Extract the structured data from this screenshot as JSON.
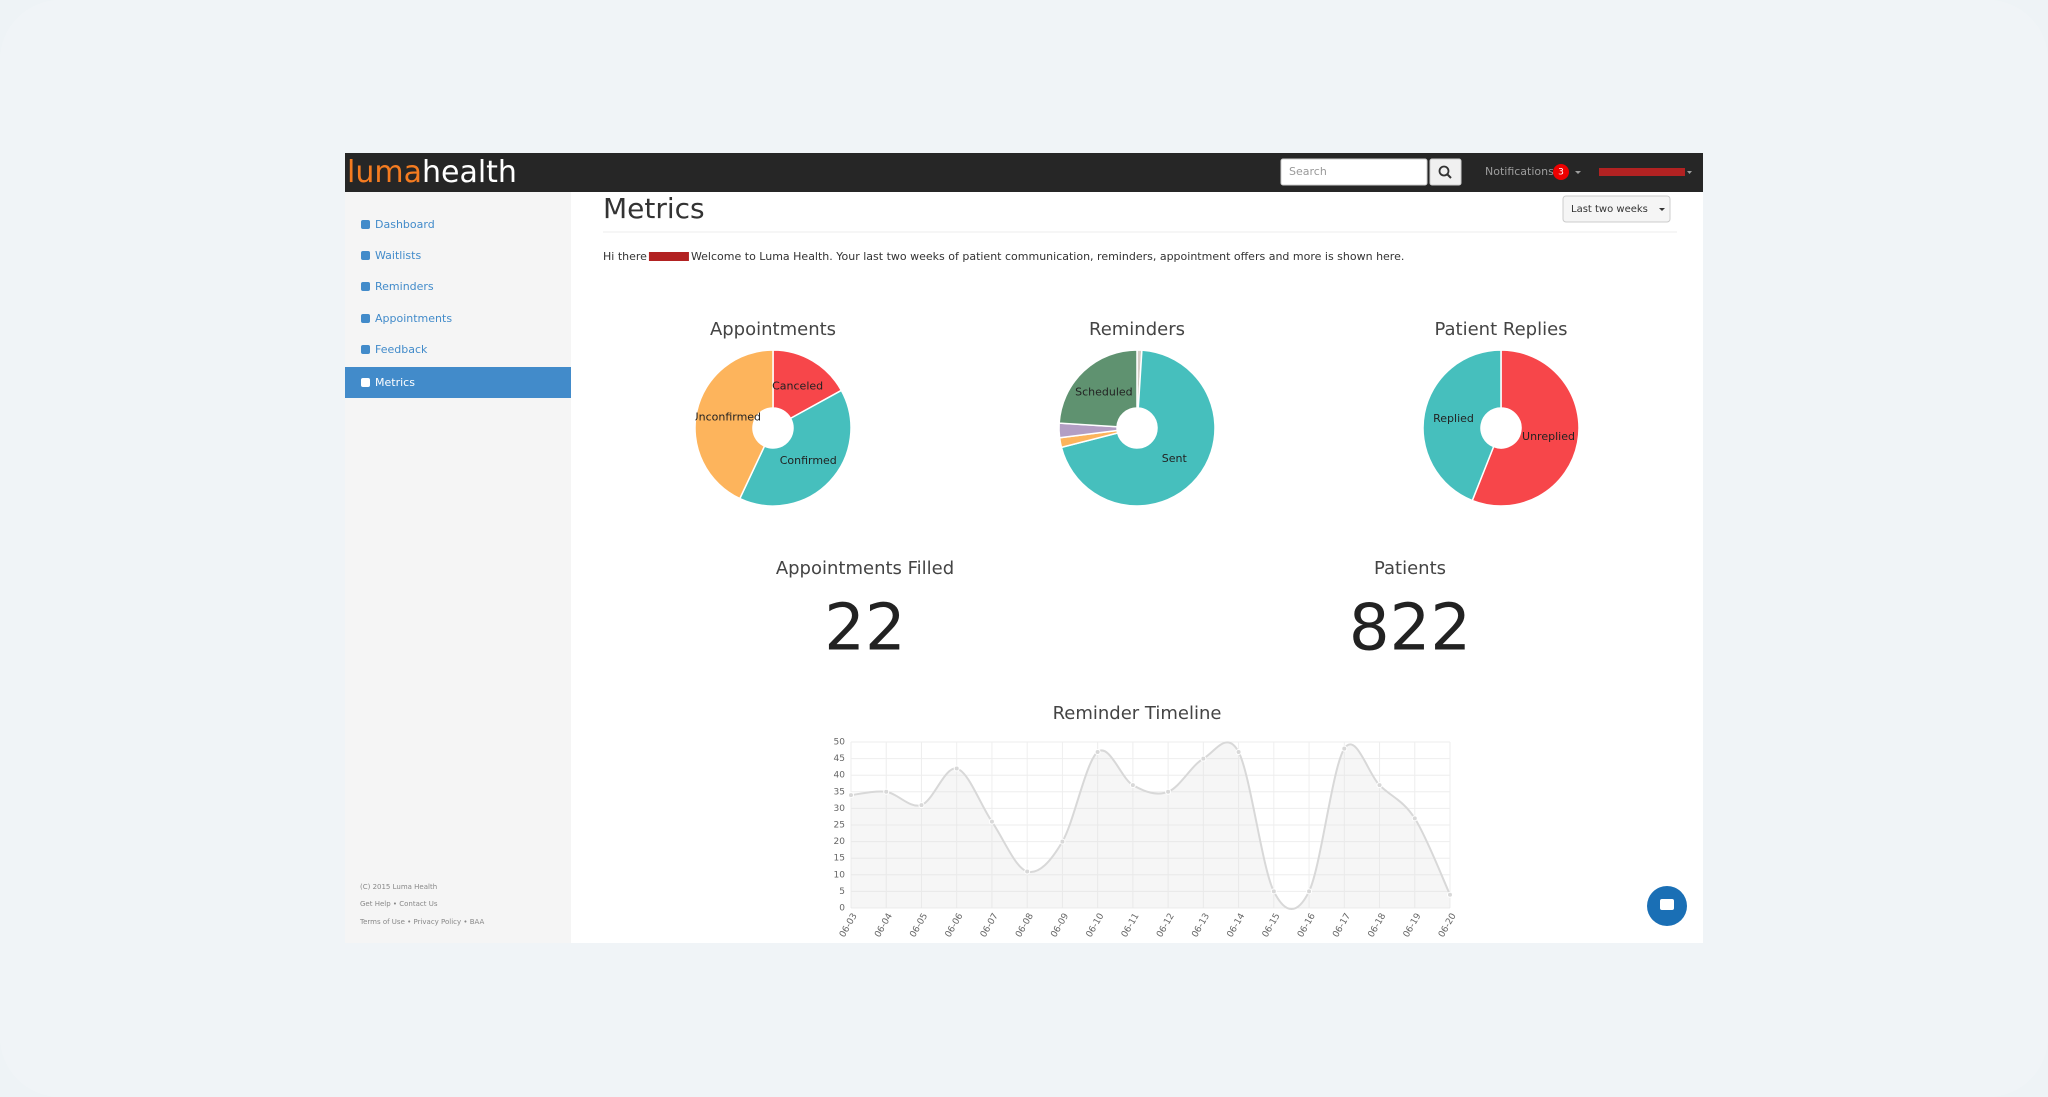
{
  "navbar": {
    "logo_luma": "luma",
    "logo_health": "health",
    "search_placeholder": "Search",
    "notifications": "Notifications",
    "badge": "3"
  },
  "sidebar": {
    "items": [
      "Dashboard",
      "Waitlists",
      "Reminders",
      "Appointments",
      "Feedback",
      "Metrics"
    ],
    "active": 5,
    "footer": [
      "(C) 2015 Luma Health",
      "Get Help • Contact Us",
      "Terms of Use • Privacy Policy • BAA"
    ]
  },
  "page": {
    "title": "Metrics",
    "range_button": "Last two weeks",
    "greeting_pre": "Hi there",
    "greeting_post": "Welcome to Luma Health. Your last two weeks of patient communication, reminders, appointment offers and more is shown here."
  },
  "stats": [
    {
      "label": "Appointments Filled",
      "value": 22
    },
    {
      "label": "Patients",
      "value": 822
    }
  ],
  "chart_data": [
    {
      "type": "pie",
      "title": "Appointments",
      "categories": [
        "Canceled",
        "Confirmed",
        "Unconfirmed"
      ],
      "values": [
        17,
        40,
        43
      ],
      "colors": [
        "#f7464a",
        "#46bfbd",
        "#fdb45c"
      ]
    },
    {
      "type": "pie",
      "title": "Reminders",
      "categories": [
        null,
        "Sent",
        null,
        null,
        "Scheduled"
      ],
      "values": [
        1,
        70,
        2,
        3,
        24
      ],
      "colors": [
        "#d4ccc5",
        "#46bfbd",
        "#fdb45c",
        "#b39ec4",
        "#5f9270"
      ]
    },
    {
      "type": "pie",
      "title": "Patient Replies",
      "categories": [
        "Unreplied",
        "Replied"
      ],
      "values": [
        56,
        44
      ],
      "colors": [
        "#f7464a",
        "#46bfbd"
      ]
    },
    {
      "type": "line",
      "title": "Reminder Timeline",
      "categories": [
        "06-03",
        "06-04",
        "06-05",
        "06-06",
        "06-07",
        "06-08",
        "06-09",
        "06-10",
        "06-11",
        "06-12",
        "06-13",
        "06-14",
        "06-15",
        "06-16",
        "06-17",
        "06-18",
        "06-19",
        "06-20"
      ],
      "values": [
        34,
        35,
        31,
        42,
        26,
        11,
        20,
        47,
        37,
        35,
        45,
        47,
        5,
        5,
        48,
        37,
        27,
        4
      ],
      "color": "#d8d8d8",
      "ylim": [
        0,
        50
      ],
      "yticks": [
        0,
        5,
        10,
        15,
        20,
        25,
        30,
        35,
        40,
        45,
        50
      ],
      "grid": true
    }
  ]
}
